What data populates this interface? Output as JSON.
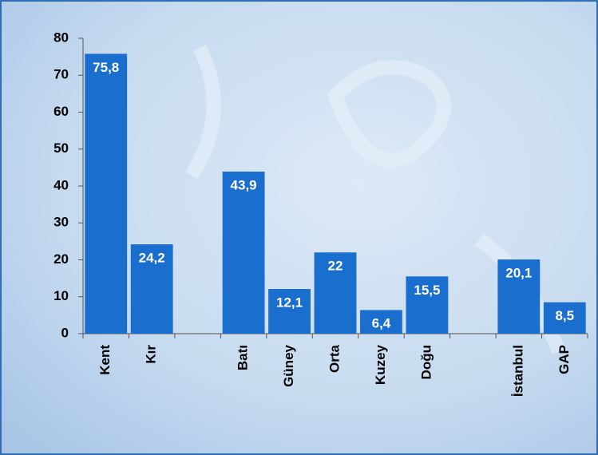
{
  "chart_data": {
    "type": "bar",
    "categories": [
      "Kent",
      "Kır",
      null,
      "Batı",
      "Güney",
      "Orta",
      "Kuzey",
      "Doğu",
      null,
      "İstanbul",
      "GAP"
    ],
    "values": [
      75.8,
      24.2,
      null,
      43.9,
      12.1,
      22,
      6.4,
      15.5,
      null,
      20.1,
      8.5
    ],
    "value_labels": [
      "75,8",
      "24,2",
      null,
      "43,9",
      "12,1",
      "22",
      "6,4",
      "15,5",
      null,
      "20,1",
      "8,5"
    ],
    "color": "#1a6fce",
    "ylim": [
      0,
      80
    ],
    "yticks": [
      0,
      10,
      20,
      30,
      40,
      50,
      60,
      70,
      80
    ]
  }
}
